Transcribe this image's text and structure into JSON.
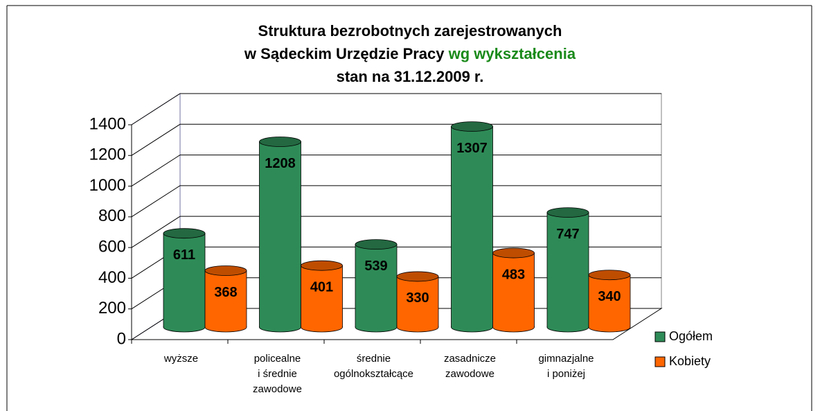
{
  "chart_data": {
    "type": "bar3d",
    "title": [
      "Struktura bezrobotnych zarejestrowanych",
      "w Sądeckim Urzędzie Pracy",
      "stan na 31.12.2009 r."
    ],
    "title_highlight": "wg wykształcenia",
    "title_highlight_color": "#1a8a1a",
    "categories": [
      [
        "wyższe"
      ],
      [
        "policealne",
        "i średnie",
        "zawodowe"
      ],
      [
        "średnie",
        "ogólnokształcące"
      ],
      [
        "zasadnicze",
        "zawodowe"
      ],
      [
        "gimnazjalne",
        "i poniżej"
      ]
    ],
    "series": [
      {
        "name": "Ogółem",
        "color": "#2e8b57",
        "values": [
          611,
          1208,
          539,
          1307,
          747
        ]
      },
      {
        "name": "Kobiety",
        "color": "#ff6600",
        "values": [
          368,
          401,
          330,
          483,
          340
        ]
      }
    ],
    "ylim": [
      0,
      1400
    ],
    "yticks": [
      0,
      200,
      400,
      600,
      800,
      1000,
      1200,
      1400
    ],
    "grid": true,
    "legend": "right"
  }
}
